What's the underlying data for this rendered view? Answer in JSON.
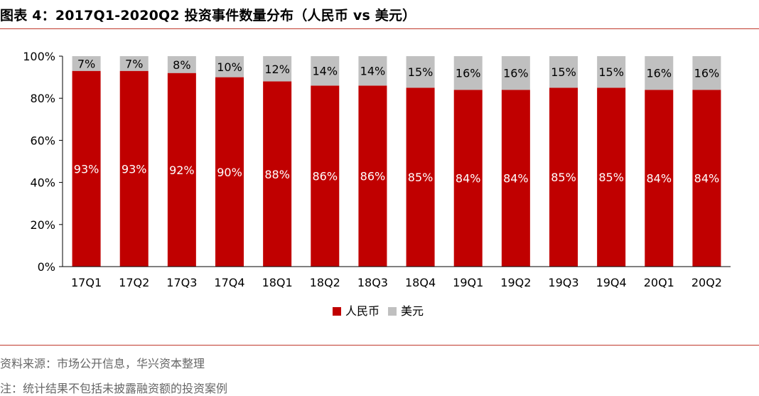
{
  "title": "图表 4：2017Q1-2020Q2 投资事件数量分布（人民币 vs 美元）",
  "source": "资料来源：市场公开信息，华兴资本整理",
  "note": "注：统计结果不包括未披露融资额的投资案例",
  "colors": {
    "rmb": "#c00000",
    "usd": "#c0c0c0",
    "rule": "#c0392b"
  },
  "chart_data": {
    "type": "bar",
    "stacked": true,
    "categories": [
      "17Q1",
      "17Q2",
      "17Q3",
      "17Q4",
      "18Q1",
      "18Q2",
      "18Q3",
      "18Q4",
      "19Q1",
      "19Q2",
      "19Q3",
      "19Q4",
      "20Q1",
      "20Q2"
    ],
    "series": [
      {
        "name": "人民币",
        "values": [
          93,
          93,
          92,
          90,
          88,
          86,
          86,
          85,
          84,
          84,
          85,
          85,
          84,
          84
        ],
        "color": "#c00000"
      },
      {
        "name": "美元",
        "values": [
          7,
          7,
          8,
          10,
          12,
          14,
          14,
          15,
          16,
          16,
          15,
          15,
          16,
          16
        ],
        "color": "#c0c0c0"
      }
    ],
    "yticks": [
      "0%",
      "20%",
      "40%",
      "60%",
      "80%",
      "100%"
    ],
    "ylim": [
      0,
      100
    ],
    "legend_position": "bottom"
  }
}
